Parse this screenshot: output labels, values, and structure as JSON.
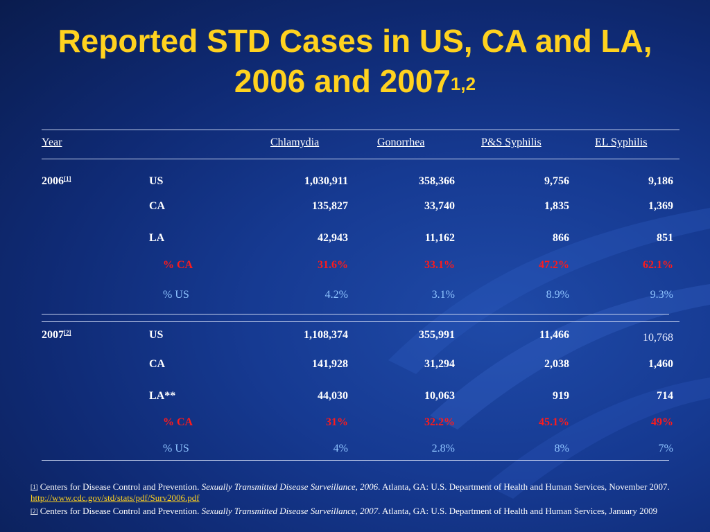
{
  "slide": {
    "title_line1": "Reported STD Cases in US, CA and LA,",
    "title_line2": "2006 and 2007",
    "title_sup": "1,2"
  },
  "table": {
    "headers": [
      "Year",
      "Chlamydia",
      "Gonorrhea",
      "P&S Syphilis",
      "EL Syphilis"
    ],
    "groups": [
      {
        "year": "2006",
        "ref": "[1]",
        "rows": [
          {
            "label": "US",
            "values": [
              "1,030,911",
              "358,366",
              "9,756",
              "9,186"
            ]
          },
          {
            "label": "CA",
            "values": [
              "135,827",
              "33,740",
              "1,835",
              "1,369"
            ]
          },
          {
            "label": "LA",
            "values": [
              "42,943",
              "11,162",
              "866",
              "851"
            ]
          },
          {
            "label": "% CA",
            "values": [
              "31.6%",
              "33.1%",
              "47.2%",
              "62.1%"
            ]
          },
          {
            "label": "% US",
            "values": [
              "4.2%",
              "3.1%",
              "8.9%",
              "9.3%"
            ]
          }
        ]
      },
      {
        "year": "2007",
        "ref": "[2]",
        "rows": [
          {
            "label": "US",
            "values": [
              "1,108,374",
              "355,991",
              "11,466",
              "10,768"
            ]
          },
          {
            "label": "CA",
            "values": [
              "141,928",
              "31,294",
              "2,038",
              "1,460"
            ]
          },
          {
            "label": "LA**",
            "values": [
              "44,030",
              "10,063",
              "919",
              "714"
            ]
          },
          {
            "label": "% CA",
            "values": [
              "31%",
              "32.2%",
              "45.1%",
              "49%"
            ]
          },
          {
            "label": "% US",
            "values": [
              "4%",
              "2.8%",
              "8%",
              "7%"
            ]
          }
        ]
      }
    ]
  },
  "footnotes": [
    {
      "ref": "[1]",
      "text_before": " Centers for Disease Control and Prevention. ",
      "italic": "Sexually Transmitted Disease Surveillance, 2006",
      "text_after": ". Atlanta, GA: U.S. Department of Health and Human Services, November 2007. ",
      "link": "http://www.cdc.gov/std/stats/pdf/Surv2006.pdf"
    },
    {
      "ref": "[2]",
      "text_before": " Centers for Disease Control and Prevention. ",
      "italic": "Sexually Transmitted Disease Surveillance, 2007",
      "text_after": ". Atlanta, GA: U.S. Department of Health and Human Services, January 2009",
      "link": ""
    }
  ],
  "colors": {
    "background": "#163a92",
    "title": "#ffd21f",
    "percent_ca": "#ff1a1a",
    "percent_us": "#8fc4ff"
  }
}
